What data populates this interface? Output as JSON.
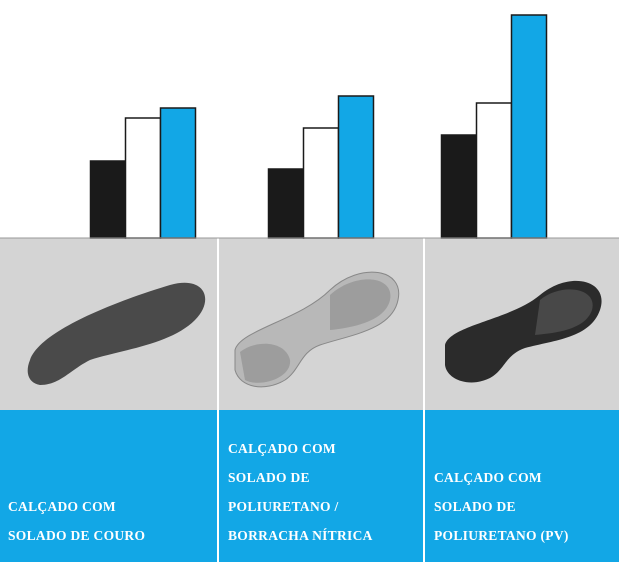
{
  "chart_data": {
    "type": "bar",
    "categories": [
      [
        "CALÇADO COM",
        "SOLADO DE COURO"
      ],
      [
        "CALÇADO COM",
        "SOLADO DE",
        "POLIURETANO /",
        "BORRACHA NÍTRICA"
      ],
      [
        "CALÇADO COM",
        "SOLADO DE",
        "POLIURETANO (PV)"
      ]
    ],
    "series": [
      {
        "color": "#1a1a1a",
        "values": [
          77,
          69,
          103
        ]
      },
      {
        "color": "#ffffff",
        "values": [
          120,
          110,
          135
        ]
      },
      {
        "color": "#12a7e6",
        "values": [
          130,
          142,
          223
        ]
      }
    ],
    "ylim": [
      0,
      230
    ]
  }
}
